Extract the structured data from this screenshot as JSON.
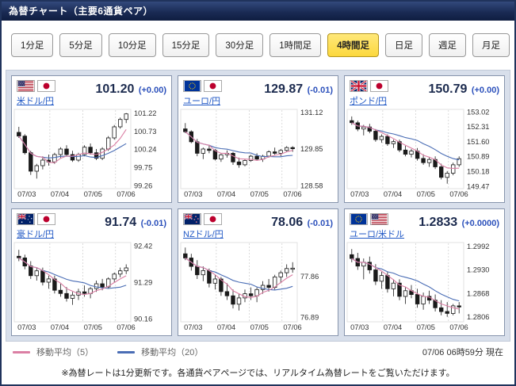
{
  "header": {
    "title": "為替チャート（主要6通貨ペア）"
  },
  "timeframes": [
    {
      "label": "1分足",
      "active": false
    },
    {
      "label": "5分足",
      "active": false
    },
    {
      "label": "10分足",
      "active": false
    },
    {
      "label": "15分足",
      "active": false
    },
    {
      "label": "30分足",
      "active": false
    },
    {
      "label": "1時間足",
      "active": false
    },
    {
      "label": "4時間足",
      "active": true
    },
    {
      "label": "日足",
      "active": false
    },
    {
      "label": "週足",
      "active": false
    },
    {
      "label": "月足",
      "active": false
    }
  ],
  "colors": {
    "ma5": "#db7fa4",
    "ma20": "#4a6db5",
    "active_button": "#fcd83d",
    "price_text": "#1b2a4e",
    "change_text": "#2b50bb",
    "panel_bg": "#ffffff",
    "area_bg": "#d8dfeb",
    "titlebar_bg": "#1a2b55"
  },
  "legend": {
    "ma5_label": "移動平均（5）",
    "ma20_label": "移動平均（20）",
    "timestamp": "07/06 06時59分 現在"
  },
  "footer": {
    "note": "※為替レートは1分更新です。各通貨ペアページでは、リアルタイム為替レートをご覧いただけます。"
  },
  "charts": [
    {
      "type": "candlestick",
      "pair": "米ドル/円",
      "flags": [
        "us-flag",
        "jp-flag"
      ],
      "price": "101.20",
      "change": "(+0.00)",
      "y_ticks": [
        "101.22",
        "100.73",
        "100.24",
        "99.75",
        "99.26"
      ],
      "x_ticks": [
        "07/03",
        "07/04",
        "07/05",
        "07/06"
      ],
      "y_min": 99.2,
      "y_max": 101.3,
      "candles": [
        [
          100.7,
          100.85,
          100.55,
          100.6
        ],
        [
          100.6,
          100.65,
          100.1,
          100.15
        ],
        [
          100.15,
          100.2,
          99.55,
          99.65
        ],
        [
          99.65,
          99.85,
          99.45,
          99.8
        ],
        [
          99.8,
          100.05,
          99.7,
          99.95
        ],
        [
          99.95,
          100.1,
          99.8,
          99.9
        ],
        [
          99.9,
          100.15,
          99.85,
          100.1
        ],
        [
          100.1,
          100.3,
          100.0,
          100.25
        ],
        [
          100.25,
          100.35,
          100.05,
          100.1
        ],
        [
          100.1,
          100.2,
          99.9,
          99.95
        ],
        [
          99.95,
          100.15,
          99.9,
          100.1
        ],
        [
          100.1,
          100.35,
          100.05,
          100.3
        ],
        [
          100.3,
          100.4,
          100.1,
          100.15
        ],
        [
          100.15,
          100.25,
          99.95,
          100.0
        ],
        [
          100.0,
          100.3,
          99.95,
          100.25
        ],
        [
          100.25,
          100.6,
          100.2,
          100.55
        ],
        [
          100.55,
          100.9,
          100.5,
          100.85
        ],
        [
          100.85,
          101.1,
          100.8,
          101.05
        ],
        [
          101.05,
          101.22,
          100.95,
          101.2
        ]
      ]
    },
    {
      "type": "candlestick",
      "pair": "ユーロ/円",
      "flags": [
        "eu-flag",
        "jp-flag"
      ],
      "price": "129.87",
      "change": "(-0.01)",
      "y_ticks": [
        "131.12",
        "129.85",
        "128.58"
      ],
      "x_ticks": [
        "07/03",
        "07/04",
        "07/05",
        "07/06"
      ],
      "y_min": 128.5,
      "y_max": 131.2,
      "candles": [
        [
          130.55,
          130.75,
          130.4,
          130.45
        ],
        [
          130.45,
          130.5,
          130.05,
          130.1
        ],
        [
          130.1,
          130.2,
          129.6,
          129.7
        ],
        [
          129.7,
          129.9,
          129.5,
          129.85
        ],
        [
          129.85,
          130.0,
          129.7,
          129.8
        ],
        [
          129.8,
          129.85,
          129.45,
          129.5
        ],
        [
          129.5,
          129.7,
          129.4,
          129.65
        ],
        [
          129.65,
          129.8,
          129.55,
          129.7
        ],
        [
          129.7,
          129.75,
          129.3,
          129.4
        ],
        [
          129.4,
          129.55,
          129.2,
          129.3
        ],
        [
          129.3,
          129.5,
          129.25,
          129.45
        ],
        [
          129.45,
          129.65,
          129.4,
          129.6
        ],
        [
          129.6,
          129.7,
          129.45,
          129.5
        ],
        [
          129.5,
          129.65,
          129.4,
          129.6
        ],
        [
          129.6,
          129.8,
          129.55,
          129.75
        ],
        [
          129.75,
          129.9,
          129.65,
          129.7
        ],
        [
          129.7,
          129.85,
          129.6,
          129.8
        ],
        [
          129.8,
          129.95,
          129.75,
          129.9
        ],
        [
          129.9,
          129.95,
          129.75,
          129.87
        ]
      ]
    },
    {
      "type": "candlestick",
      "pair": "ポンド/円",
      "flags": [
        "uk-flag",
        "jp-flag"
      ],
      "price": "150.79",
      "change": "(+0.00)",
      "y_ticks": [
        "153.02",
        "152.31",
        "151.60",
        "150.89",
        "150.18",
        "149.47"
      ],
      "x_ticks": [
        "07/03",
        "07/04",
        "07/05",
        "07/06"
      ],
      "y_min": 149.4,
      "y_max": 153.1,
      "candles": [
        [
          152.6,
          152.8,
          152.4,
          152.5
        ],
        [
          152.5,
          152.6,
          152.1,
          152.2
        ],
        [
          152.2,
          152.4,
          151.9,
          152.3
        ],
        [
          152.3,
          152.45,
          152.0,
          152.1
        ],
        [
          152.1,
          152.2,
          151.6,
          151.7
        ],
        [
          151.7,
          151.95,
          151.55,
          151.85
        ],
        [
          151.85,
          151.95,
          151.4,
          151.5
        ],
        [
          151.5,
          151.7,
          151.3,
          151.6
        ],
        [
          151.6,
          151.7,
          151.1,
          151.2
        ],
        [
          151.2,
          151.4,
          150.9,
          151.0
        ],
        [
          151.0,
          151.25,
          150.85,
          151.15
        ],
        [
          151.15,
          151.3,
          150.7,
          150.8
        ],
        [
          150.8,
          151.0,
          150.5,
          150.6
        ],
        [
          150.6,
          150.85,
          150.4,
          150.75
        ],
        [
          150.75,
          150.9,
          150.3,
          150.4
        ],
        [
          150.4,
          150.55,
          149.8,
          149.9
        ],
        [
          149.9,
          150.2,
          149.6,
          150.1
        ],
        [
          150.1,
          150.6,
          150.0,
          150.5
        ],
        [
          150.5,
          150.9,
          150.4,
          150.79
        ]
      ]
    },
    {
      "type": "candlestick",
      "pair": "豪ドル/円",
      "flags": [
        "au-flag",
        "jp-flag"
      ],
      "price": "91.74",
      "change": "(-0.01)",
      "y_ticks": [
        "92.42",
        "91.29",
        "90.16"
      ],
      "x_ticks": [
        "07/03",
        "07/04",
        "07/05",
        "07/06"
      ],
      "y_min": 90.1,
      "y_max": 92.5,
      "candles": [
        [
          92.1,
          92.3,
          91.95,
          92.05
        ],
        [
          92.05,
          92.15,
          91.7,
          91.8
        ],
        [
          91.8,
          91.95,
          91.4,
          91.5
        ],
        [
          91.5,
          91.75,
          91.35,
          91.65
        ],
        [
          91.65,
          91.75,
          91.2,
          91.3
        ],
        [
          91.3,
          91.5,
          91.1,
          91.4
        ],
        [
          91.4,
          91.5,
          90.95,
          91.05
        ],
        [
          91.05,
          91.25,
          90.85,
          90.95
        ],
        [
          90.95,
          91.15,
          90.7,
          90.8
        ],
        [
          90.8,
          91.0,
          90.6,
          90.9
        ],
        [
          90.9,
          91.1,
          90.75,
          91.0
        ],
        [
          91.0,
          91.2,
          90.85,
          90.95
        ],
        [
          90.95,
          91.15,
          90.8,
          91.1
        ],
        [
          91.1,
          91.35,
          91.0,
          91.25
        ],
        [
          91.25,
          91.4,
          91.05,
          91.15
        ],
        [
          91.15,
          91.45,
          91.1,
          91.4
        ],
        [
          91.4,
          91.6,
          91.3,
          91.55
        ],
        [
          91.55,
          91.75,
          91.45,
          91.65
        ],
        [
          91.65,
          91.85,
          91.55,
          91.74
        ]
      ]
    },
    {
      "type": "candlestick",
      "pair": "NZドル/円",
      "flags": [
        "nz-flag",
        "jp-flag"
      ],
      "price": "78.06",
      "change": "(-0.01)",
      "y_ticks": [
        "77.86",
        "76.89"
      ],
      "x_ticks": [
        "07/03",
        "07/04",
        "07/05",
        "07/06"
      ],
      "y_min": 76.8,
      "y_max": 78.65,
      "candles": [
        [
          78.4,
          78.55,
          78.25,
          78.3
        ],
        [
          78.3,
          78.4,
          78.0,
          78.1
        ],
        [
          78.1,
          78.25,
          77.8,
          77.9
        ],
        [
          77.9,
          78.1,
          77.75,
          78.0
        ],
        [
          78.0,
          78.05,
          77.6,
          77.7
        ],
        [
          77.7,
          77.9,
          77.55,
          77.8
        ],
        [
          77.8,
          77.85,
          77.4,
          77.5
        ],
        [
          77.5,
          77.7,
          77.3,
          77.4
        ],
        [
          77.4,
          77.55,
          77.1,
          77.2
        ],
        [
          77.2,
          77.45,
          77.05,
          77.35
        ],
        [
          77.35,
          77.55,
          77.25,
          77.45
        ],
        [
          77.45,
          77.6,
          77.3,
          77.4
        ],
        [
          77.4,
          77.6,
          77.25,
          77.55
        ],
        [
          77.55,
          77.75,
          77.45,
          77.65
        ],
        [
          77.65,
          77.8,
          77.5,
          77.6
        ],
        [
          77.6,
          77.9,
          77.55,
          77.85
        ],
        [
          77.85,
          78.0,
          77.7,
          77.95
        ],
        [
          77.95,
          78.15,
          77.85,
          78.05
        ],
        [
          78.05,
          78.2,
          77.95,
          78.06
        ]
      ]
    },
    {
      "type": "candlestick",
      "pair": "ユーロ/米ドル",
      "flags": [
        "eu-flag",
        "us-flag"
      ],
      "price": "1.2833",
      "change": "(+0.0000)",
      "y_ticks": [
        "1.2992",
        "1.2930",
        "1.2868",
        "1.2806"
      ],
      "x_ticks": [
        "07/03",
        "07/04",
        "07/05",
        "07/06"
      ],
      "y_min": 1.2795,
      "y_max": 1.3,
      "candles": [
        [
          1.297,
          1.2985,
          1.295,
          1.296
        ],
        [
          1.296,
          1.2975,
          1.293,
          1.294
        ],
        [
          1.294,
          1.296,
          1.2905,
          1.295
        ],
        [
          1.295,
          1.2965,
          1.292,
          1.293
        ],
        [
          1.293,
          1.2945,
          1.289,
          1.29
        ],
        [
          1.29,
          1.2925,
          1.288,
          1.2915
        ],
        [
          1.2915,
          1.2925,
          1.287,
          1.288
        ],
        [
          1.288,
          1.2905,
          1.286,
          1.2895
        ],
        [
          1.2895,
          1.2905,
          1.285,
          1.286
        ],
        [
          1.286,
          1.2885,
          1.284,
          1.2875
        ],
        [
          1.2875,
          1.289,
          1.2855,
          1.2865
        ],
        [
          1.2865,
          1.288,
          1.283,
          1.284
        ],
        [
          1.284,
          1.287,
          1.2825,
          1.286
        ],
        [
          1.286,
          1.2875,
          1.284,
          1.285
        ],
        [
          1.285,
          1.2865,
          1.282,
          1.283
        ],
        [
          1.283,
          1.285,
          1.281,
          1.282
        ],
        [
          1.282,
          1.2845,
          1.2806,
          1.2815
        ],
        [
          1.2815,
          1.284,
          1.281,
          1.2835
        ],
        [
          1.2835,
          1.2845,
          1.2815,
          1.2833
        ]
      ]
    }
  ]
}
